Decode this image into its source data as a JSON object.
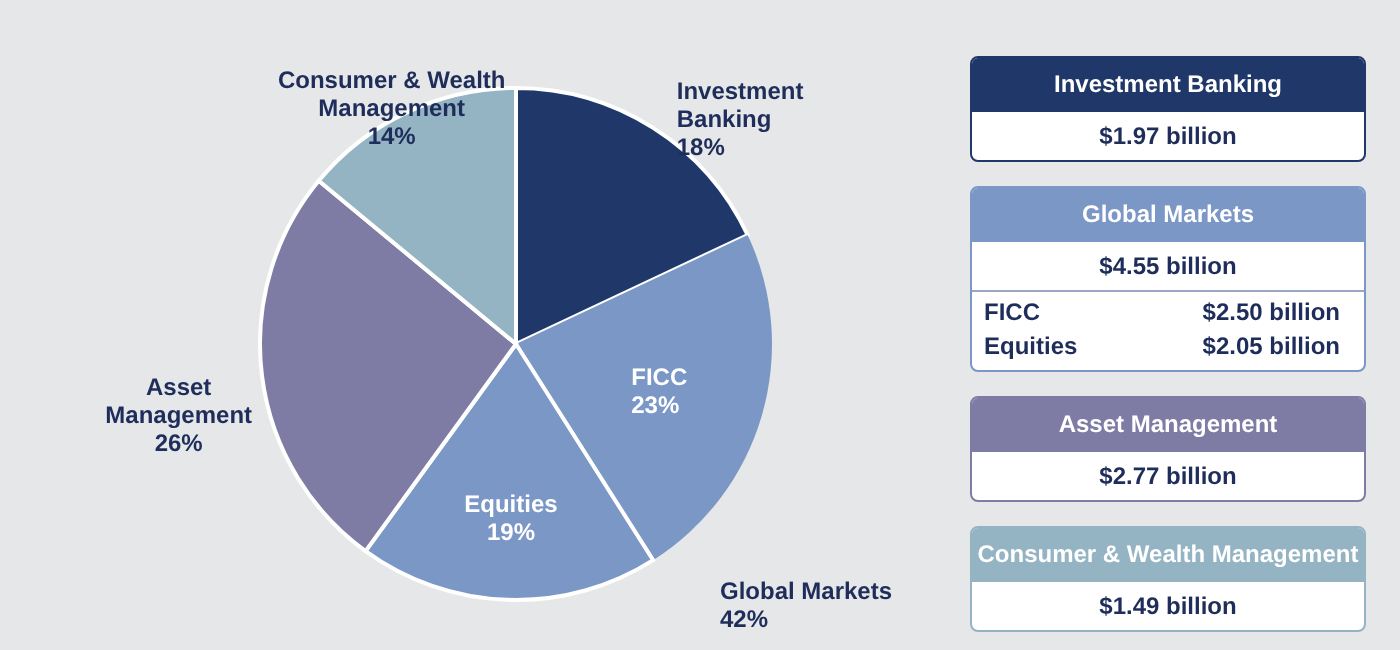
{
  "chart_data": [
    {
      "type": "pie",
      "categories": [
        "Investment Banking",
        "FICC",
        "Equities",
        "Asset Management",
        "Consumer & Wealth Management"
      ],
      "values": [
        18,
        23,
        19,
        26,
        14
      ],
      "value_labels": [
        "18%",
        "23%",
        "19%",
        "26%",
        "14%"
      ],
      "colors": [
        "#1f3769",
        "#7b97c6",
        "#7b97c6",
        "#7e7ca5",
        "#94b4c3"
      ],
      "annotations": [
        "Global Markets 42%"
      ]
    },
    {
      "type": "other",
      "colors": [
        "#1f3769",
        "#7b97c6",
        "#7e7ca5",
        "#94b4c3"
      ],
      "annotations": [
        "Investment Banking",
        "$1.97 billion",
        "Global Markets",
        "$4.55 billion",
        "FICC",
        "$2.50 billion",
        "Equities",
        "$2.05 billion",
        "Asset Management",
        "$2.77 billion",
        "Consumer & Wealth Management",
        "$1.49 billion"
      ]
    }
  ]
}
